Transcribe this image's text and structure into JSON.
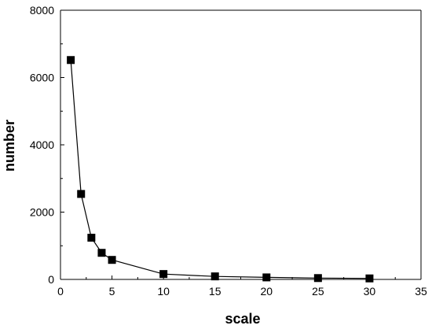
{
  "chart_data": {
    "type": "line",
    "title": "",
    "xlabel": "scale",
    "ylabel": "number",
    "xlim": [
      0,
      35
    ],
    "ylim": [
      0,
      8000
    ],
    "xticks": [
      0,
      5,
      10,
      15,
      20,
      25,
      30,
      35
    ],
    "yticks": [
      0,
      2000,
      4000,
      6000,
      8000
    ],
    "grid": false,
    "legend": "none",
    "marker": "square",
    "colors": {
      "line": "#000000",
      "marker": "#000000"
    },
    "series": [
      {
        "x": [
          1,
          2,
          3,
          4,
          5,
          10,
          15,
          20,
          25,
          30
        ],
        "y": [
          6520,
          2540,
          1240,
          790,
          580,
          160,
          90,
          60,
          40,
          30
        ]
      }
    ]
  }
}
